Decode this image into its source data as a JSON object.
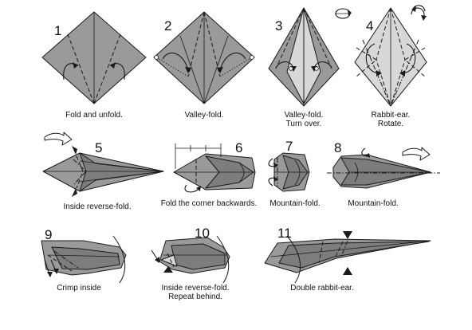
{
  "steps": [
    {
      "number": "1",
      "caption": [
        "Fold and unfold."
      ]
    },
    {
      "number": "2",
      "caption": [
        "Valley-fold."
      ]
    },
    {
      "number": "3",
      "caption": [
        "Valley-fold.",
        "Turn over."
      ]
    },
    {
      "number": "4",
      "caption": [
        "Rabbit-ear.",
        "Rotate."
      ]
    },
    {
      "number": "5",
      "caption": [
        "Inside reverse-fold."
      ]
    },
    {
      "number": "6",
      "caption": [
        "Fold the corner backwards."
      ]
    },
    {
      "number": "7",
      "caption": [
        "Mountain-fold."
      ]
    },
    {
      "number": "8",
      "caption": [
        "Mountain-fold."
      ]
    },
    {
      "number": "9",
      "caption": [
        "Crimp inside"
      ]
    },
    {
      "number": "10",
      "caption": [
        "Inside reverse-fold.",
        "Repeat behind."
      ]
    },
    {
      "number": "11",
      "caption": [
        "Double rabbit-ear."
      ]
    }
  ],
  "colors": {
    "paper": "#9a9a9a",
    "paper_light": "#d8d8d8",
    "line": "#1a1a1a",
    "background": "#ffffff"
  },
  "symbols": [
    "rotate-icon",
    "turn-over-icon",
    "push-arrow-icon",
    "fold-arrow-icon"
  ]
}
